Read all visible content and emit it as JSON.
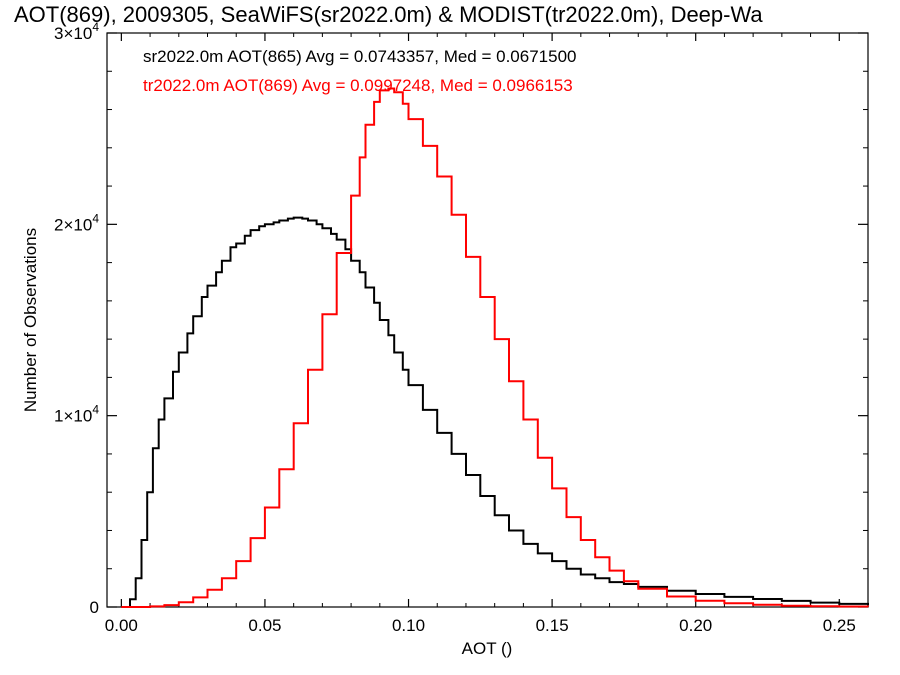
{
  "chart_data": {
    "type": "line",
    "title": "AOT(869), 2009305, SeaWiFS(sr2022.0m) & MODIST(tr2022.0m), Deep-Wa",
    "xlabel": "AOT ()",
    "ylabel": "Number of Observations",
    "xlim": [
      -0.005,
      0.26
    ],
    "ylim": [
      0,
      30000
    ],
    "x_ticks": [
      {
        "value": 0.0,
        "label": "0.00"
      },
      {
        "value": 0.05,
        "label": "0.05"
      },
      {
        "value": 0.1,
        "label": "0.10"
      },
      {
        "value": 0.15,
        "label": "0.15"
      },
      {
        "value": 0.2,
        "label": "0.20"
      },
      {
        "value": 0.25,
        "label": "0.25"
      }
    ],
    "y_ticks": [
      {
        "value": 0,
        "label": "0",
        "sup": ""
      },
      {
        "value": 10000,
        "label": "1×10",
        "sup": "4"
      },
      {
        "value": 20000,
        "label": "2×10",
        "sup": "4"
      },
      {
        "value": 30000,
        "label": "3×10",
        "sup": "4"
      }
    ],
    "grid": false,
    "series": [
      {
        "label": "sr2022.0m AOT(865) Avg = 0.0743357, Med = 0.0671500",
        "color": "#000000",
        "x": [
          0.0,
          0.003,
          0.005,
          0.007,
          0.009,
          0.011,
          0.013,
          0.015,
          0.018,
          0.02,
          0.023,
          0.025,
          0.028,
          0.03,
          0.033,
          0.035,
          0.038,
          0.04,
          0.043,
          0.045,
          0.048,
          0.05,
          0.053,
          0.055,
          0.058,
          0.06,
          0.063,
          0.065,
          0.068,
          0.07,
          0.073,
          0.075,
          0.078,
          0.08,
          0.083,
          0.085,
          0.088,
          0.09,
          0.093,
          0.095,
          0.098,
          0.1,
          0.105,
          0.11,
          0.115,
          0.12,
          0.125,
          0.13,
          0.135,
          0.14,
          0.145,
          0.15,
          0.155,
          0.16,
          0.165,
          0.17,
          0.175,
          0.18,
          0.19,
          0.2,
          0.21,
          0.22,
          0.23,
          0.24,
          0.25,
          0.26
        ],
        "y": [
          0,
          400,
          1500,
          3500,
          6000,
          8300,
          9800,
          10900,
          12300,
          13300,
          14300,
          15200,
          16200,
          16800,
          17500,
          18100,
          18800,
          19000,
          19400,
          19700,
          19900,
          20000,
          20100,
          20200,
          20300,
          20350,
          20300,
          20200,
          20000,
          19800,
          19500,
          19200,
          18700,
          18100,
          17500,
          16700,
          15900,
          15000,
          14200,
          13300,
          12400,
          11600,
          10300,
          9100,
          8000,
          6900,
          5800,
          4800,
          4000,
          3300,
          2800,
          2400,
          2000,
          1700,
          1500,
          1300,
          1200,
          1050,
          850,
          680,
          530,
          420,
          320,
          230,
          160,
          100
        ]
      },
      {
        "label": "tr2022.0m AOT(869) Avg = 0.0997248, Med = 0.0966153",
        "color": "#ff0000",
        "x": [
          0.0,
          0.01,
          0.015,
          0.02,
          0.025,
          0.03,
          0.035,
          0.04,
          0.045,
          0.05,
          0.055,
          0.06,
          0.065,
          0.07,
          0.075,
          0.08,
          0.083,
          0.085,
          0.088,
          0.09,
          0.093,
          0.095,
          0.098,
          0.1,
          0.105,
          0.11,
          0.115,
          0.12,
          0.125,
          0.13,
          0.135,
          0.14,
          0.145,
          0.15,
          0.155,
          0.16,
          0.165,
          0.17,
          0.175,
          0.18,
          0.19,
          0.2,
          0.21,
          0.22,
          0.23,
          0.24,
          0.25,
          0.26
        ],
        "y": [
          0,
          30,
          100,
          250,
          500,
          900,
          1500,
          2400,
          3600,
          5200,
          7200,
          9600,
          12400,
          15300,
          18500,
          21500,
          23500,
          25200,
          26400,
          27000,
          27100,
          26900,
          26300,
          25500,
          24100,
          22500,
          20500,
          18300,
          16200,
          14000,
          11800,
          9800,
          7800,
          6200,
          4700,
          3500,
          2600,
          1900,
          1350,
          950,
          550,
          330,
          200,
          120,
          70,
          40,
          25,
          15
        ]
      }
    ]
  }
}
